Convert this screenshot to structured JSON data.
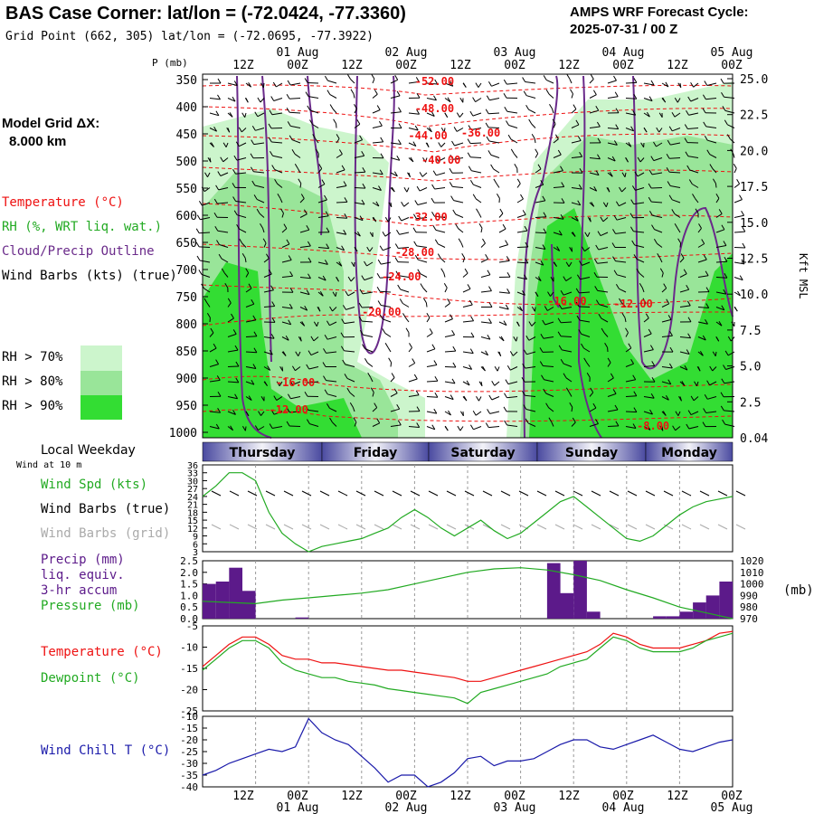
{
  "header": {
    "title": "BAS Case Corner:  lat/lon = (-72.0424, -77.3360)",
    "subtitle": "Grid Point (662, 305) lat/lon = (-72.0695, -77.3922)",
    "cycle_line1": "AMPS WRF Forecast Cycle:",
    "cycle_line2": "2025-07-31 / 00  Z"
  },
  "colors": {
    "temperature": "#ee1111",
    "rh": "#22aa22",
    "cloud": "#6a2a8a",
    "wind_chill": "#1a1aaa",
    "rh70": "#ccf5cc",
    "rh80": "#99e599",
    "rh90": "#33dd33",
    "precip": "#5c1a8a"
  },
  "legend": {
    "model_grid_line1": "Model Grid ΔX:",
    "model_grid_line2": "8.000 km",
    "temperature": "Temperature (°C)",
    "rh": "RH (%, WRT liq. wat.)",
    "cloud": "Cloud/Precip Outline",
    "wind_barbs": "Wind Barbs (kts) (true)",
    "rh70": "RH > 70%",
    "rh80": "RH > 80%",
    "rh90": "RH > 90%"
  },
  "time_axis": {
    "hour_labels": [
      "12Z",
      "00Z",
      "12Z",
      "00Z",
      "12Z",
      "00Z",
      "12Z",
      "00Z",
      "12Z",
      "00Z"
    ],
    "date_labels": [
      "01 Aug",
      "02 Aug",
      "03 Aug",
      "04 Aug",
      "05 Aug"
    ],
    "local_weekday_label": "Local Weekday",
    "wind_at_label": "Wind at 10 m",
    "days": [
      "Thursday",
      "Friday",
      "Saturday",
      "Sunday",
      "Monday"
    ]
  },
  "chart_data": [
    {
      "type": "contour",
      "name": "cross-section",
      "ylabel": "P (mb)",
      "y2label": "Kft MSL",
      "pressure_ticks": [
        "350",
        "400",
        "450",
        "500",
        "550",
        "600",
        "650",
        "700",
        "750",
        "800",
        "850",
        "900",
        "950",
        "1000"
      ],
      "kft_ticks": [
        "25.0",
        "22.5",
        "20.0",
        "17.5",
        "15.0",
        "12.5",
        "10.0",
        "7.5",
        "5.0",
        "2.5",
        "0.04"
      ],
      "temperature_labels": [
        {
          "text": "-52.00",
          "t": 35,
          "p": 360
        },
        {
          "text": "-48.00",
          "t": 35,
          "p": 410
        },
        {
          "text": "-44.00",
          "t": 34,
          "p": 460
        },
        {
          "text": "-36.00",
          "t": 42,
          "p": 455
        },
        {
          "text": "-40.00",
          "t": 36,
          "p": 505
        },
        {
          "text": "-32.00",
          "t": 34,
          "p": 610
        },
        {
          "text": "-28.00",
          "t": 32,
          "p": 675
        },
        {
          "text": "-24.00",
          "t": 30,
          "p": 720
        },
        {
          "text": "-20.00",
          "t": 27,
          "p": 785
        },
        {
          "text": "-16.00",
          "t": 55,
          "p": 765
        },
        {
          "text": "-12.00",
          "t": 65,
          "p": 770
        },
        {
          "text": "-16.00",
          "t": 14,
          "p": 915
        },
        {
          "text": "-12.00",
          "t": 13,
          "p": 965
        },
        {
          "text": "-8.00",
          "t": 68,
          "p": 995
        }
      ]
    },
    {
      "type": "line",
      "name": "wind",
      "ylim": [
        3,
        36
      ],
      "yticks": [
        "36",
        "33",
        "30",
        "27",
        "24",
        "21",
        "18",
        "15",
        "12",
        "9",
        "6",
        "3"
      ],
      "legend": [
        "Wind Spd (kts)",
        "Wind Barbs (true)",
        "Wind Barbs (grid)"
      ],
      "x_hours": [
        0,
        3,
        6,
        9,
        12,
        15,
        18,
        21,
        24,
        27,
        30,
        33,
        36,
        39,
        42,
        45,
        48,
        51,
        54,
        57,
        60,
        63,
        66,
        69,
        72,
        75,
        78,
        81,
        84,
        87,
        90,
        93,
        96,
        99,
        102,
        105,
        108,
        111,
        114,
        117,
        120
      ],
      "series": [
        {
          "name": "Wind Spd (kts)",
          "values": [
            24,
            28,
            33,
            33,
            30,
            18,
            10,
            6,
            3,
            5,
            6,
            7,
            8,
            10,
            12,
            16,
            19,
            16,
            12,
            9,
            12,
            15,
            11,
            8,
            10,
            14,
            18,
            22,
            24,
            20,
            16,
            12,
            8,
            7,
            9,
            13,
            17,
            20,
            22,
            23,
            24
          ]
        }
      ]
    },
    {
      "type": "bar",
      "name": "precip-pressure",
      "ylim": [
        0,
        2.5
      ],
      "yticks": [
        "2.5",
        "2.0",
        "1.5",
        "1.0",
        "0.5",
        "0.0"
      ],
      "y2ticks": [
        "1020",
        "1010",
        "1000",
        "990",
        "980",
        "970"
      ],
      "y2label": "(mb)",
      "legend": [
        "Precip (mm)",
        "liq. equiv.",
        "3-hr accum",
        "Pressure (mb)"
      ],
      "precip": [
        1.5,
        1.6,
        2.2,
        1.2,
        0,
        0,
        0,
        0.05,
        0,
        0,
        0,
        0,
        0,
        0,
        0,
        0,
        0,
        0,
        0,
        0,
        0,
        0,
        0,
        0,
        0,
        0,
        2.4,
        1.1,
        2.5,
        0.3,
        0,
        0,
        0,
        0,
        0.1,
        0.1,
        0.3,
        0.7,
        1.0,
        1.6
      ],
      "pressure_hours": [
        0,
        6,
        12,
        18,
        24,
        30,
        36,
        42,
        48,
        54,
        60,
        66,
        72,
        78,
        84,
        90,
        96,
        102,
        108,
        114,
        120
      ],
      "pressure": [
        985,
        984,
        983,
        986,
        988,
        990,
        992,
        995,
        1000,
        1005,
        1010,
        1013,
        1014,
        1012,
        1008,
        1003,
        995,
        988,
        980,
        975,
        970
      ]
    },
    {
      "type": "line",
      "name": "temperature-dewpoint",
      "ylim": [
        -25,
        -2
      ],
      "yticks": [
        "-5",
        "-10",
        "-15",
        "-20",
        "-25"
      ],
      "legend": [
        "Temperature (°C)",
        "Dewpoint (°C)"
      ],
      "x_hours": [
        0,
        3,
        6,
        9,
        12,
        15,
        18,
        21,
        24,
        27,
        30,
        33,
        36,
        39,
        42,
        45,
        48,
        51,
        54,
        57,
        60,
        63,
        66,
        69,
        72,
        75,
        78,
        81,
        84,
        87,
        90,
        93,
        96,
        99,
        102,
        105,
        108,
        111,
        114,
        117,
        120
      ],
      "series": [
        {
          "name": "Temperature (°C)",
          "values": [
            -13,
            -10,
            -7,
            -5,
            -5,
            -7,
            -10,
            -11,
            -11,
            -12,
            -12,
            -12.5,
            -13,
            -13.5,
            -14,
            -14,
            -14.5,
            -15,
            -15.5,
            -16,
            -17,
            -17,
            -16,
            -15,
            -14,
            -13,
            -12,
            -11,
            -10,
            -9,
            -7,
            -4,
            -5,
            -7,
            -8,
            -8,
            -8,
            -7,
            -6,
            -4,
            -3.5
          ]
        },
        {
          "name": "Dewpoint (°C)",
          "values": [
            -14,
            -11,
            -8,
            -6,
            -6,
            -8,
            -12,
            -14,
            -15,
            -16,
            -16,
            -17,
            -17.5,
            -18,
            -19,
            -19.5,
            -20,
            -20.5,
            -21,
            -21.5,
            -23,
            -20,
            -19,
            -18,
            -17,
            -16,
            -15,
            -13,
            -12,
            -11,
            -8,
            -5,
            -6,
            -8,
            -9,
            -9,
            -9,
            -8,
            -6,
            -5,
            -4
          ]
        }
      ]
    },
    {
      "type": "line",
      "name": "wind-chill",
      "ylim": [
        -40,
        -10
      ],
      "yticks": [
        "-10",
        "-15",
        "-20",
        "-25",
        "-30",
        "-35",
        "-40"
      ],
      "legend": [
        "Wind Chill T (°C)"
      ],
      "x_hours": [
        0,
        3,
        6,
        9,
        12,
        15,
        18,
        21,
        24,
        27,
        30,
        33,
        36,
        39,
        42,
        45,
        48,
        51,
        54,
        57,
        60,
        63,
        66,
        69,
        72,
        75,
        78,
        81,
        84,
        87,
        90,
        93,
        96,
        99,
        102,
        105,
        108,
        111,
        114,
        117,
        120
      ],
      "series": [
        {
          "name": "Wind Chill T (°C)",
          "values": [
            -35,
            -33,
            -30,
            -28,
            -26,
            -24,
            -25,
            -23,
            -11,
            -17,
            -20,
            -22,
            -27,
            -32,
            -38,
            -35,
            -35,
            -40,
            -38,
            -34,
            -28,
            -27,
            -31,
            -29,
            -29,
            -28,
            -25,
            -22,
            -20,
            -20,
            -23,
            -24,
            -22,
            -20,
            -18,
            -21,
            -24,
            -25,
            -23,
            -21,
            -20
          ]
        }
      ]
    }
  ]
}
